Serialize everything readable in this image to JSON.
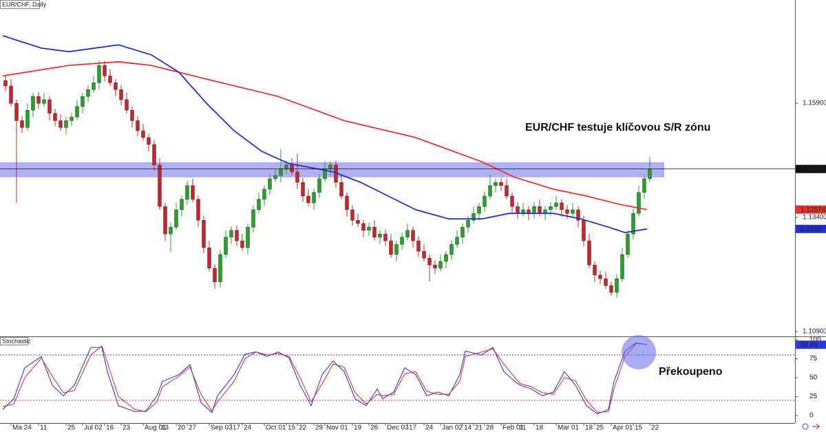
{
  "chart_data": [
    {
      "type": "candlestick",
      "title": "EUR/CHF, Daily",
      "annotation": "EUR/CHF testuje klíčovou S/R zónu",
      "xlim": [
        -0.5,
        143.875
      ],
      "ylim": [
        1.10798,
        1.18162
      ],
      "yticks": [
        1.15903,
        1.13403,
        1.10903
      ],
      "up_color": "#26a22c",
      "down_color": "#c8262a",
      "zone": [
        1.1428,
        1.1461
      ],
      "zone_color": "#8f8ff2",
      "candles": [
        [
          1.164,
          1.165,
          1.1616,
          1.1628
        ],
        [
          1.1628,
          1.1643,
          1.1583,
          1.159
        ],
        [
          1.159,
          1.1598,
          1.1372,
          1.1552
        ],
        [
          1.1552,
          1.1562,
          1.1525,
          1.1537
        ],
        [
          1.1537,
          1.159,
          1.153,
          1.1575
        ],
        [
          1.1575,
          1.1613,
          1.156,
          1.1605
        ],
        [
          1.1605,
          1.1615,
          1.1578,
          1.159
        ],
        [
          1.159,
          1.1613,
          1.1583,
          1.1598
        ],
        [
          1.1598,
          1.1606,
          1.1553,
          1.1568
        ],
        [
          1.1568,
          1.1578,
          1.154,
          1.1552
        ],
        [
          1.1552,
          1.1567,
          1.153,
          1.1537
        ],
        [
          1.1537,
          1.156,
          1.1522,
          1.1552
        ],
        [
          1.1552,
          1.157,
          1.154,
          1.156
        ],
        [
          1.156,
          1.1598,
          1.1553,
          1.1583
        ],
        [
          1.1583,
          1.1613,
          1.1568,
          1.1605
        ],
        [
          1.1605,
          1.163,
          1.1593,
          1.162
        ],
        [
          1.162,
          1.165,
          1.1613,
          1.1635
        ],
        [
          1.1635,
          1.1684,
          1.162,
          1.1673
        ],
        [
          1.1673,
          1.1683,
          1.1638,
          1.165
        ],
        [
          1.165,
          1.1665,
          1.1628,
          1.1635
        ],
        [
          1.1635,
          1.1643,
          1.1605,
          1.162
        ],
        [
          1.162,
          1.163,
          1.1586,
          1.1598
        ],
        [
          1.1598,
          1.1613,
          1.1568,
          1.1575
        ],
        [
          1.1575,
          1.1583,
          1.1537,
          1.1552
        ],
        [
          1.1552,
          1.1562,
          1.1518,
          1.153
        ],
        [
          1.153,
          1.1545,
          1.1508,
          1.1515
        ],
        [
          1.1515,
          1.1523,
          1.1485,
          1.15
        ],
        [
          1.15,
          1.151,
          1.1443,
          1.1455
        ],
        [
          1.1455,
          1.147,
          1.1357,
          1.1364
        ],
        [
          1.1364,
          1.1372,
          1.1289,
          1.1304
        ],
        [
          1.1304,
          1.1329,
          1.1265,
          1.1319
        ],
        [
          1.1319,
          1.1372,
          1.1312,
          1.1357
        ],
        [
          1.1357,
          1.1388,
          1.1342,
          1.138
        ],
        [
          1.138,
          1.142,
          1.1368,
          1.141
        ],
        [
          1.141,
          1.1425,
          1.1373,
          1.138
        ],
        [
          1.138,
          1.1388,
          1.1319,
          1.1334
        ],
        [
          1.1334,
          1.1344,
          1.1262,
          1.1274
        ],
        [
          1.1274,
          1.1289,
          1.1222,
          1.1229
        ],
        [
          1.1229,
          1.1237,
          1.1184,
          1.1199
        ],
        [
          1.1199,
          1.1269,
          1.1187,
          1.1259
        ],
        [
          1.1259,
          1.1312,
          1.1252,
          1.1297
        ],
        [
          1.1297,
          1.132,
          1.1282,
          1.1312
        ],
        [
          1.1312,
          1.1322,
          1.1277,
          1.1289
        ],
        [
          1.1289,
          1.1304,
          1.1267,
          1.1274
        ],
        [
          1.1274,
          1.1327,
          1.1259,
          1.1319
        ],
        [
          1.1319,
          1.1367,
          1.1307,
          1.1357
        ],
        [
          1.1357,
          1.1395,
          1.135,
          1.138
        ],
        [
          1.138,
          1.141,
          1.1365,
          1.1402
        ],
        [
          1.1402,
          1.1435,
          1.139,
          1.1425
        ],
        [
          1.1425,
          1.1447,
          1.1418,
          1.1432
        ],
        [
          1.1432,
          1.149,
          1.1417,
          1.1447
        ],
        [
          1.1447,
          1.1465,
          1.1435,
          1.1455
        ],
        [
          1.1455,
          1.147,
          1.1433,
          1.144
        ],
        [
          1.144,
          1.148,
          1.1402,
          1.1417
        ],
        [
          1.1417,
          1.1427,
          1.1375,
          1.1387
        ],
        [
          1.1387,
          1.1402,
          1.1365,
          1.1372
        ],
        [
          1.1372,
          1.1403,
          1.1357,
          1.1395
        ],
        [
          1.1395,
          1.1435,
          1.1383,
          1.1425
        ],
        [
          1.1425,
          1.1462,
          1.1418,
          1.1447
        ],
        [
          1.1447,
          1.1463,
          1.1432,
          1.1455
        ],
        [
          1.1455,
          1.1465,
          1.1405,
          1.1417
        ],
        [
          1.1417,
          1.1432,
          1.138,
          1.1387
        ],
        [
          1.1387,
          1.1395,
          1.1342,
          1.1357
        ],
        [
          1.1357,
          1.1367,
          1.1322,
          1.1334
        ],
        [
          1.1334,
          1.1349,
          1.132,
          1.1327
        ],
        [
          1.1327,
          1.1335,
          1.1297,
          1.1312
        ],
        [
          1.1312,
          1.1329,
          1.13,
          1.1319
        ],
        [
          1.1319,
          1.1334,
          1.129,
          1.1297
        ],
        [
          1.1297,
          1.1312,
          1.1282,
          1.1304
        ],
        [
          1.1304,
          1.1314,
          1.1277,
          1.1289
        ],
        [
          1.1289,
          1.1304,
          1.1252,
          1.1259
        ],
        [
          1.1259,
          1.1289,
          1.1244,
          1.1281
        ],
        [
          1.1281,
          1.1307,
          1.1269,
          1.1297
        ],
        [
          1.1297,
          1.1327,
          1.129,
          1.1312
        ],
        [
          1.1312,
          1.132,
          1.1274,
          1.1289
        ],
        [
          1.1289,
          1.1299,
          1.1254,
          1.1266
        ],
        [
          1.1266,
          1.1281,
          1.1244,
          1.1251
        ],
        [
          1.1251,
          1.1259,
          1.12,
          1.1236
        ],
        [
          1.1236,
          1.1246,
          1.1217,
          1.1229
        ],
        [
          1.1229,
          1.1259,
          1.1222,
          1.1244
        ],
        [
          1.1244,
          1.1267,
          1.1229,
          1.1259
        ],
        [
          1.1259,
          1.1291,
          1.1247,
          1.1281
        ],
        [
          1.1281,
          1.1312,
          1.1274,
          1.1297
        ],
        [
          1.1297,
          1.1327,
          1.1282,
          1.1319
        ],
        [
          1.1319,
          1.1344,
          1.1307,
          1.1334
        ],
        [
          1.1334,
          1.1364,
          1.1327,
          1.1349
        ],
        [
          1.1349,
          1.1372,
          1.1334,
          1.1364
        ],
        [
          1.1364,
          1.1397,
          1.1352,
          1.1387
        ],
        [
          1.1387,
          1.1435,
          1.138,
          1.141
        ],
        [
          1.141,
          1.1425,
          1.1395,
          1.1417
        ],
        [
          1.1417,
          1.1427,
          1.1398,
          1.141
        ],
        [
          1.141,
          1.1425,
          1.138,
          1.1387
        ],
        [
          1.1387,
          1.1395,
          1.1349,
          1.1364
        ],
        [
          1.1364,
          1.1374,
          1.1337,
          1.1349
        ],
        [
          1.1349,
          1.1372,
          1.1342,
          1.1357
        ],
        [
          1.1357,
          1.1365,
          1.1334,
          1.1349
        ],
        [
          1.1349,
          1.1374,
          1.1337,
          1.1364
        ],
        [
          1.1364,
          1.1379,
          1.1342,
          1.1349
        ],
        [
          1.1349,
          1.1365,
          1.1334,
          1.1357
        ],
        [
          1.1357,
          1.1374,
          1.1345,
          1.1364
        ],
        [
          1.1364,
          1.1387,
          1.1357,
          1.1372
        ],
        [
          1.1372,
          1.138,
          1.1342,
          1.1357
        ],
        [
          1.1357,
          1.1367,
          1.1337,
          1.1349
        ],
        [
          1.1349,
          1.1372,
          1.1342,
          1.1357
        ],
        [
          1.1357,
          1.1365,
          1.1319,
          1.1334
        ],
        [
          1.1334,
          1.1344,
          1.1277,
          1.1289
        ],
        [
          1.1289,
          1.1304,
          1.1229,
          1.1236
        ],
        [
          1.1236,
          1.1244,
          1.1199,
          1.1214
        ],
        [
          1.1214,
          1.1224,
          1.1194,
          1.1206
        ],
        [
          1.1206,
          1.1221,
          1.1184,
          1.1191
        ],
        [
          1.1191,
          1.1199,
          1.1169,
          1.1176
        ],
        [
          1.1176,
          1.1216,
          1.1164,
          1.1206
        ],
        [
          1.1206,
          1.1274,
          1.1199,
          1.1259
        ],
        [
          1.1259,
          1.1312,
          1.1252,
          1.1304
        ],
        [
          1.1304,
          1.1359,
          1.1292,
          1.1349
        ],
        [
          1.1349,
          1.141,
          1.1342,
          1.1395
        ],
        [
          1.1395,
          1.1433,
          1.138,
          1.1425
        ],
        [
          1.1425,
          1.1473,
          1.1418,
          1.14463
        ]
      ],
      "series": [
        {
          "color": "#e8322e",
          "x": [
            0,
            12,
            21,
            27,
            37,
            50,
            62,
            75,
            87,
            93,
            100,
            106,
            112,
            117
          ],
          "values": [
            1.165,
            1.1673,
            1.1681,
            1.1673,
            1.1643,
            1.1605,
            1.1552,
            1.1515,
            1.1462,
            1.1428,
            1.1402,
            1.1387,
            1.1369,
            1.13574
          ]
        },
        {
          "color": "#2030d0",
          "x": [
            0,
            7,
            12,
            21,
            27,
            32,
            37,
            42,
            47,
            52,
            60,
            65,
            70,
            75,
            81,
            87,
            92,
            100,
            105,
            110,
            113,
            117
          ],
          "values": [
            1.1738,
            1.1711,
            1.1703,
            1.1718,
            1.1696,
            1.1658,
            1.159,
            1.153,
            1.1485,
            1.1458,
            1.144,
            1.1417,
            1.1387,
            1.1357,
            1.1337,
            1.1337,
            1.1349,
            1.1349,
            1.1337,
            1.1319,
            1.1307,
            1.1315
          ]
        }
      ]
    },
    {
      "type": "stochastic",
      "title": "Stochastic",
      "annotation": "Překoupeno",
      "xlim": [
        -0.5,
        143.875
      ],
      "ylim": [
        -10,
        103.6
      ],
      "yticks": [
        0,
        25,
        50,
        75,
        100
      ],
      "levels": [
        {
          "value": 80,
          "color": "#3a3ad8"
        },
        {
          "value": 20,
          "color": "#e03030"
        }
      ],
      "xticks": [
        {
          "value": 1,
          "label": "Ma 24"
        },
        {
          "value": 6,
          "label": "11"
        },
        {
          "value": 11,
          "label": "25"
        },
        {
          "value": 14,
          "label": "Jul 02"
        },
        {
          "value": 18,
          "label": "16"
        },
        {
          "value": 21,
          "label": "23"
        },
        {
          "value": 25,
          "label": "Aug 01"
        },
        {
          "value": 28,
          "label": "13"
        },
        {
          "value": 31,
          "label": "20"
        },
        {
          "value": 33,
          "label": "27"
        },
        {
          "value": 37,
          "label": "Sep 03"
        },
        {
          "value": 41,
          "label": "17"
        },
        {
          "value": 43,
          "label": "24"
        },
        {
          "value": 47,
          "label": "Oct 01"
        },
        {
          "value": 51,
          "label": "15"
        },
        {
          "value": 53,
          "label": "22"
        },
        {
          "value": 56,
          "label": "29"
        },
        {
          "value": 58,
          "label": "Nov 01"
        },
        {
          "value": 63,
          "label": "19"
        },
        {
          "value": 66,
          "label": "26"
        },
        {
          "value": 69,
          "label": "Dec 03"
        },
        {
          "value": 73,
          "label": "17"
        },
        {
          "value": 76,
          "label": "24"
        },
        {
          "value": 79,
          "label": "Jan 02"
        },
        {
          "value": 83,
          "label": "14"
        },
        {
          "value": 85,
          "label": "21"
        },
        {
          "value": 87,
          "label": "28"
        },
        {
          "value": 90,
          "label": "Feb 01"
        },
        {
          "value": 93,
          "label": "11"
        },
        {
          "value": 96,
          "label": "18"
        },
        {
          "value": 100,
          "label": "Mar 01"
        },
        {
          "value": 105,
          "label": "18"
        },
        {
          "value": 107,
          "label": "25"
        },
        {
          "value": 110,
          "label": "Apr 01"
        },
        {
          "value": 114,
          "label": "15"
        },
        {
          "value": 117,
          "label": "22"
        }
      ],
      "series": [
        {
          "color": "#2a3adf",
          "x": [
            0,
            2,
            4,
            7,
            9,
            11,
            13,
            16,
            18,
            19,
            21,
            24,
            26,
            28,
            29,
            32,
            34,
            36,
            38,
            39,
            42,
            44,
            46,
            48,
            50,
            52,
            54,
            56,
            58,
            60,
            62,
            64,
            66,
            68,
            69,
            71,
            73,
            75,
            77,
            79,
            81,
            83,
            84,
            87,
            89,
            91,
            93,
            94,
            96,
            98,
            100,
            102,
            104,
            106,
            108,
            110,
            111,
            113,
            115,
            117
          ],
          "values": [
            8,
            22,
            63,
            78,
            40,
            26,
            40,
            90,
            90,
            58,
            13,
            5,
            6,
            26,
            45,
            54,
            67,
            17,
            4,
            26,
            54,
            81,
            84,
            78,
            84,
            76,
            40,
            13,
            54,
            72,
            58,
            22,
            13,
            35,
            22,
            31,
            63,
            54,
            26,
            31,
            26,
            54,
            85,
            80,
            90,
            58,
            45,
            40,
            35,
            26,
            31,
            58,
            40,
            13,
            2,
            8,
            45,
            85,
            96,
            93.49
          ]
        },
        {
          "color": "#e8322e",
          "x": [
            0,
            2,
            4,
            7,
            9,
            11,
            13,
            16,
            18,
            19,
            21,
            24,
            26,
            28,
            29,
            32,
            34,
            36,
            38,
            39,
            42,
            44,
            46,
            48,
            50,
            52,
            54,
            56,
            58,
            60,
            62,
            64,
            66,
            68,
            69,
            71,
            73,
            75,
            77,
            79,
            81,
            83,
            84,
            87,
            89,
            91,
            93,
            94,
            96,
            98,
            100,
            102,
            104,
            106,
            108,
            110,
            111,
            113,
            115,
            117
          ],
          "values": [
            12,
            15,
            50,
            76,
            52,
            30,
            33,
            80,
            92,
            70,
            25,
            8,
            5,
            18,
            38,
            52,
            64,
            28,
            6,
            18,
            45,
            75,
            84,
            80,
            82,
            78,
            50,
            18,
            42,
            68,
            64,
            30,
            15,
            28,
            26,
            28,
            55,
            58,
            32,
            28,
            28,
            45,
            78,
            84,
            88,
            68,
            50,
            42,
            38,
            30,
            28,
            50,
            46,
            20,
            4,
            5,
            35,
            78,
            95,
            94
          ]
        }
      ]
    }
  ]
}
